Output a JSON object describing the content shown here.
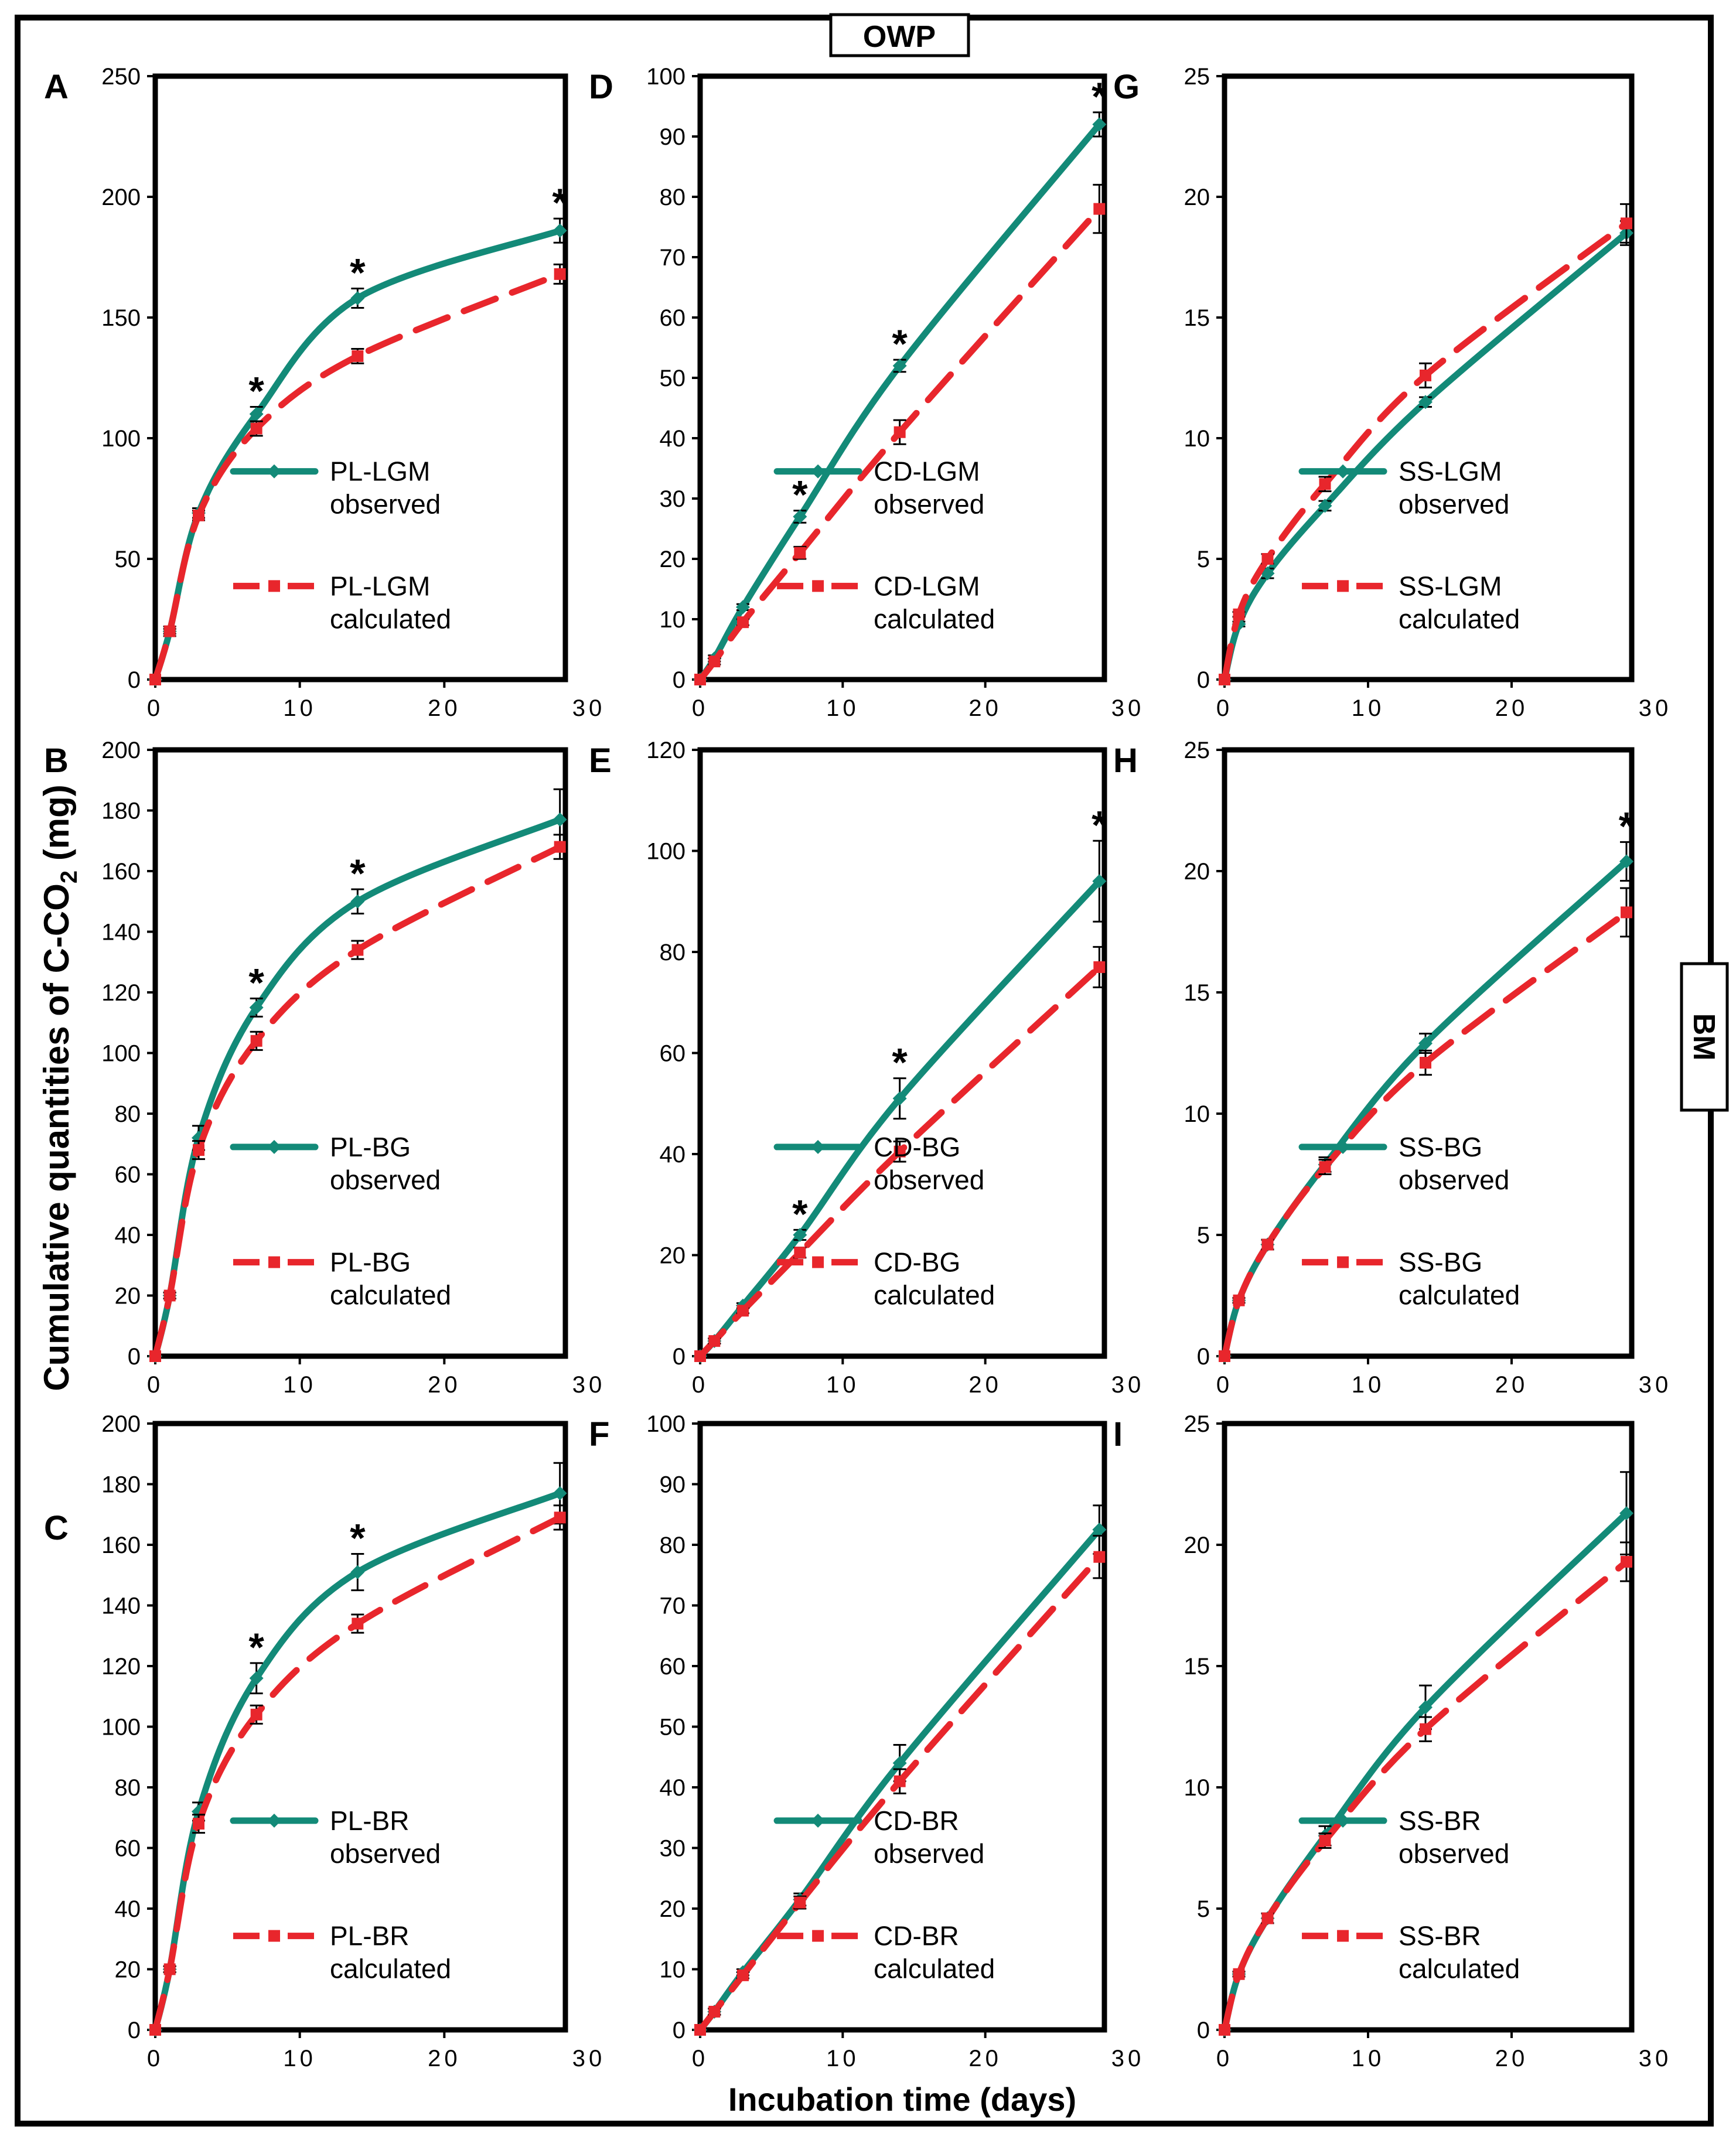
{
  "figure": {
    "top_label": "OWP",
    "right_label": "BM",
    "y_label_prefix": "Cumulative quantities of C-CO",
    "y_label_sub": "2",
    "y_label_suffix": " (mg)",
    "x_label": "Incubation time (days)"
  },
  "colors": {
    "observed": "#138a78",
    "calculated": "#e8262c",
    "frame": "#000000"
  },
  "chart_data": [
    {
      "panel": "A",
      "type": "line",
      "xlim": [
        0,
        30
      ],
      "ylim": [
        0,
        250
      ],
      "ytick_step": 50,
      "x_ticks": [
        0,
        10,
        20,
        30
      ],
      "legend_name": "PL-LGM",
      "observed_word": "observed",
      "calculated_word": "calculated",
      "series": [
        {
          "name": "PL-LGM observed",
          "x": [
            0,
            1,
            3,
            7,
            14,
            28
          ],
          "y": [
            0,
            20,
            69,
            110,
            158,
            186
          ],
          "err": [
            0,
            1,
            2,
            3,
            4,
            5
          ]
        },
        {
          "name": "PL-LGM calculated",
          "x": [
            0,
            1,
            3,
            7,
            14,
            28
          ],
          "y": [
            0,
            20,
            68,
            104,
            134,
            168
          ],
          "err": [
            0,
            2,
            2,
            3,
            3,
            4
          ]
        }
      ],
      "asterisks": [
        7,
        14,
        28
      ],
      "asterisk_text": "*"
    },
    {
      "panel": "B",
      "type": "line",
      "xlim": [
        0,
        30
      ],
      "ylim": [
        0,
        200
      ],
      "ytick_step": 20,
      "x_ticks": [
        0,
        10,
        20,
        30
      ],
      "legend_name": "PL-BG",
      "observed_word": "observed",
      "calculated_word": "calculated",
      "series": [
        {
          "name": "PL-BG observed",
          "x": [
            0,
            1,
            3,
            7,
            14,
            28
          ],
          "y": [
            0,
            20,
            72,
            115,
            150,
            177
          ],
          "err": [
            0,
            1,
            4,
            3,
            4,
            10
          ]
        },
        {
          "name": "PL-BG calculated",
          "x": [
            0,
            1,
            3,
            7,
            14,
            28
          ],
          "y": [
            0,
            20,
            68,
            104,
            134,
            168
          ],
          "err": [
            0,
            1,
            3,
            3,
            3,
            4
          ]
        }
      ],
      "asterisks": [
        7,
        14
      ],
      "asterisk_text": "*"
    },
    {
      "panel": "C",
      "type": "line",
      "xlim": [
        0,
        30
      ],
      "ylim": [
        0,
        200
      ],
      "ytick_step": 20,
      "x_ticks": [
        0,
        10,
        20,
        30
      ],
      "legend_name": "PL-BR",
      "observed_word": "observed",
      "calculated_word": "calculated",
      "series": [
        {
          "name": "PL-BR observed",
          "x": [
            0,
            1,
            3,
            7,
            14,
            28
          ],
          "y": [
            0,
            20,
            72,
            116,
            151,
            177
          ],
          "err": [
            0,
            1,
            3,
            5,
            6,
            10
          ]
        },
        {
          "name": "PL-BR calculated",
          "x": [
            0,
            1,
            3,
            7,
            14,
            28
          ],
          "y": [
            0,
            20,
            68,
            104,
            134,
            169
          ],
          "err": [
            0,
            1,
            3,
            3,
            3,
            4
          ]
        }
      ],
      "asterisks": [
        7,
        14
      ],
      "asterisk_text": "*"
    },
    {
      "panel": "D",
      "type": "line",
      "xlim": [
        0,
        30
      ],
      "ylim": [
        0,
        100
      ],
      "ytick_step": 10,
      "x_ticks": [
        0,
        10,
        20,
        30
      ],
      "legend_name": "CD-LGM",
      "observed_word": "observed",
      "calculated_word": "calculated",
      "series": [
        {
          "name": "CD-LGM observed",
          "x": [
            0,
            1,
            3,
            7,
            14,
            28
          ],
          "y": [
            0,
            3.5,
            12,
            27,
            52,
            92
          ],
          "err": [
            0,
            0.5,
            0.5,
            1,
            1,
            2
          ]
        },
        {
          "name": "CD-LGM calculated",
          "x": [
            0,
            1,
            3,
            7,
            14,
            28
          ],
          "y": [
            0,
            3,
            9.5,
            21,
            41,
            78
          ],
          "err": [
            0,
            0.5,
            0.5,
            1,
            2,
            4
          ]
        }
      ],
      "asterisks": [
        7,
        14,
        28
      ],
      "asterisk_text": "*"
    },
    {
      "panel": "E",
      "type": "line",
      "xlim": [
        0,
        30
      ],
      "ylim": [
        0,
        120
      ],
      "ytick_step": 20,
      "x_ticks": [
        0,
        10,
        20,
        30
      ],
      "legend_name": "CD-BG",
      "observed_word": "observed",
      "calculated_word": "calculated",
      "series": [
        {
          "name": "CD-BG observed",
          "x": [
            0,
            1,
            3,
            7,
            14,
            28
          ],
          "y": [
            0,
            3,
            10,
            24,
            51,
            94
          ],
          "err": [
            0,
            0.5,
            0.5,
            1,
            4,
            8
          ]
        },
        {
          "name": "CD-BG calculated",
          "x": [
            0,
            1,
            3,
            7,
            14,
            28
          ],
          "y": [
            0,
            3,
            9,
            20.5,
            40.5,
            77
          ],
          "err": [
            0,
            0.5,
            0.5,
            1,
            2,
            4
          ]
        }
      ],
      "asterisks": [
        7,
        14,
        28
      ],
      "asterisk_text": "*"
    },
    {
      "panel": "F",
      "type": "line",
      "xlim": [
        0,
        30
      ],
      "ylim": [
        0,
        100
      ],
      "ytick_step": 10,
      "x_ticks": [
        0,
        10,
        20,
        30
      ],
      "legend_name": "CD-BR",
      "observed_word": "observed",
      "calculated_word": "calculated",
      "series": [
        {
          "name": "CD-BR observed",
          "x": [
            0,
            1,
            3,
            7,
            14,
            28
          ],
          "y": [
            0,
            3,
            9.5,
            21.5,
            44,
            82.5
          ],
          "err": [
            0,
            0.5,
            0.5,
            1,
            3,
            4
          ]
        },
        {
          "name": "CD-BR calculated",
          "x": [
            0,
            1,
            3,
            7,
            14,
            28
          ],
          "y": [
            0,
            3,
            9,
            21,
            41,
            78
          ],
          "err": [
            0,
            0.5,
            0.5,
            1,
            2,
            3.5
          ]
        }
      ],
      "asterisks": [],
      "asterisk_text": "*"
    },
    {
      "panel": "G",
      "type": "line",
      "xlim": [
        0,
        30
      ],
      "ylim": [
        0,
        25
      ],
      "ytick_step": 5,
      "x_ticks": [
        0,
        10,
        20,
        30
      ],
      "legend_name": "SS-LGM",
      "observed_word": "observed",
      "calculated_word": "calculated",
      "series": [
        {
          "name": "SS-LGM observed",
          "x": [
            0,
            1,
            3,
            7,
            14,
            28
          ],
          "y": [
            0,
            2.3,
            4.4,
            7.2,
            11.5,
            18.5
          ],
          "err": [
            0,
            0.1,
            0.2,
            0.2,
            0.2,
            0.5
          ]
        },
        {
          "name": "SS-LGM calculated",
          "x": [
            0,
            1,
            3,
            7,
            14,
            28
          ],
          "y": [
            0,
            2.7,
            5,
            8.1,
            12.6,
            18.9
          ],
          "err": [
            0,
            0.1,
            0.2,
            0.3,
            0.5,
            0.8
          ]
        }
      ],
      "asterisks": [],
      "asterisk_text": "*"
    },
    {
      "panel": "H",
      "type": "line",
      "xlim": [
        0,
        30
      ],
      "ylim": [
        0,
        25
      ],
      "ytick_step": 5,
      "x_ticks": [
        0,
        10,
        20,
        30
      ],
      "legend_name": "SS-BG",
      "observed_word": "observed",
      "calculated_word": "calculated",
      "series": [
        {
          "name": "SS-BG observed",
          "x": [
            0,
            1,
            3,
            7,
            14,
            28
          ],
          "y": [
            0,
            2.3,
            4.6,
            7.9,
            12.9,
            20.4
          ],
          "err": [
            0,
            0.1,
            0.2,
            0.3,
            0.4,
            0.8
          ]
        },
        {
          "name": "SS-BG calculated",
          "x": [
            0,
            1,
            3,
            7,
            14,
            28
          ],
          "y": [
            0,
            2.3,
            4.6,
            7.8,
            12.1,
            18.3
          ],
          "err": [
            0,
            0.1,
            0.2,
            0.3,
            0.5,
            1
          ]
        }
      ],
      "asterisks": [
        28
      ],
      "asterisk_text": "*"
    },
    {
      "panel": "I",
      "type": "line",
      "xlim": [
        0,
        30
      ],
      "ylim": [
        0,
        25
      ],
      "ytick_step": 5,
      "x_ticks": [
        0,
        10,
        20,
        30
      ],
      "legend_name": "SS-BR",
      "observed_word": "observed",
      "calculated_word": "calculated",
      "series": [
        {
          "name": "SS-BR observed",
          "x": [
            0,
            1,
            3,
            7,
            14,
            28
          ],
          "y": [
            0,
            2.3,
            4.6,
            8,
            13.3,
            21.3
          ],
          "err": [
            0,
            0.1,
            0.2,
            0.4,
            0.9,
            1.7
          ]
        },
        {
          "name": "SS-BR calculated",
          "x": [
            0,
            1,
            3,
            7,
            14,
            28
          ],
          "y": [
            0,
            2.3,
            4.6,
            7.8,
            12.4,
            19.3
          ],
          "err": [
            0,
            0.1,
            0.2,
            0.3,
            0.5,
            0.8
          ]
        }
      ],
      "asterisks": [],
      "asterisk_text": "*"
    }
  ]
}
